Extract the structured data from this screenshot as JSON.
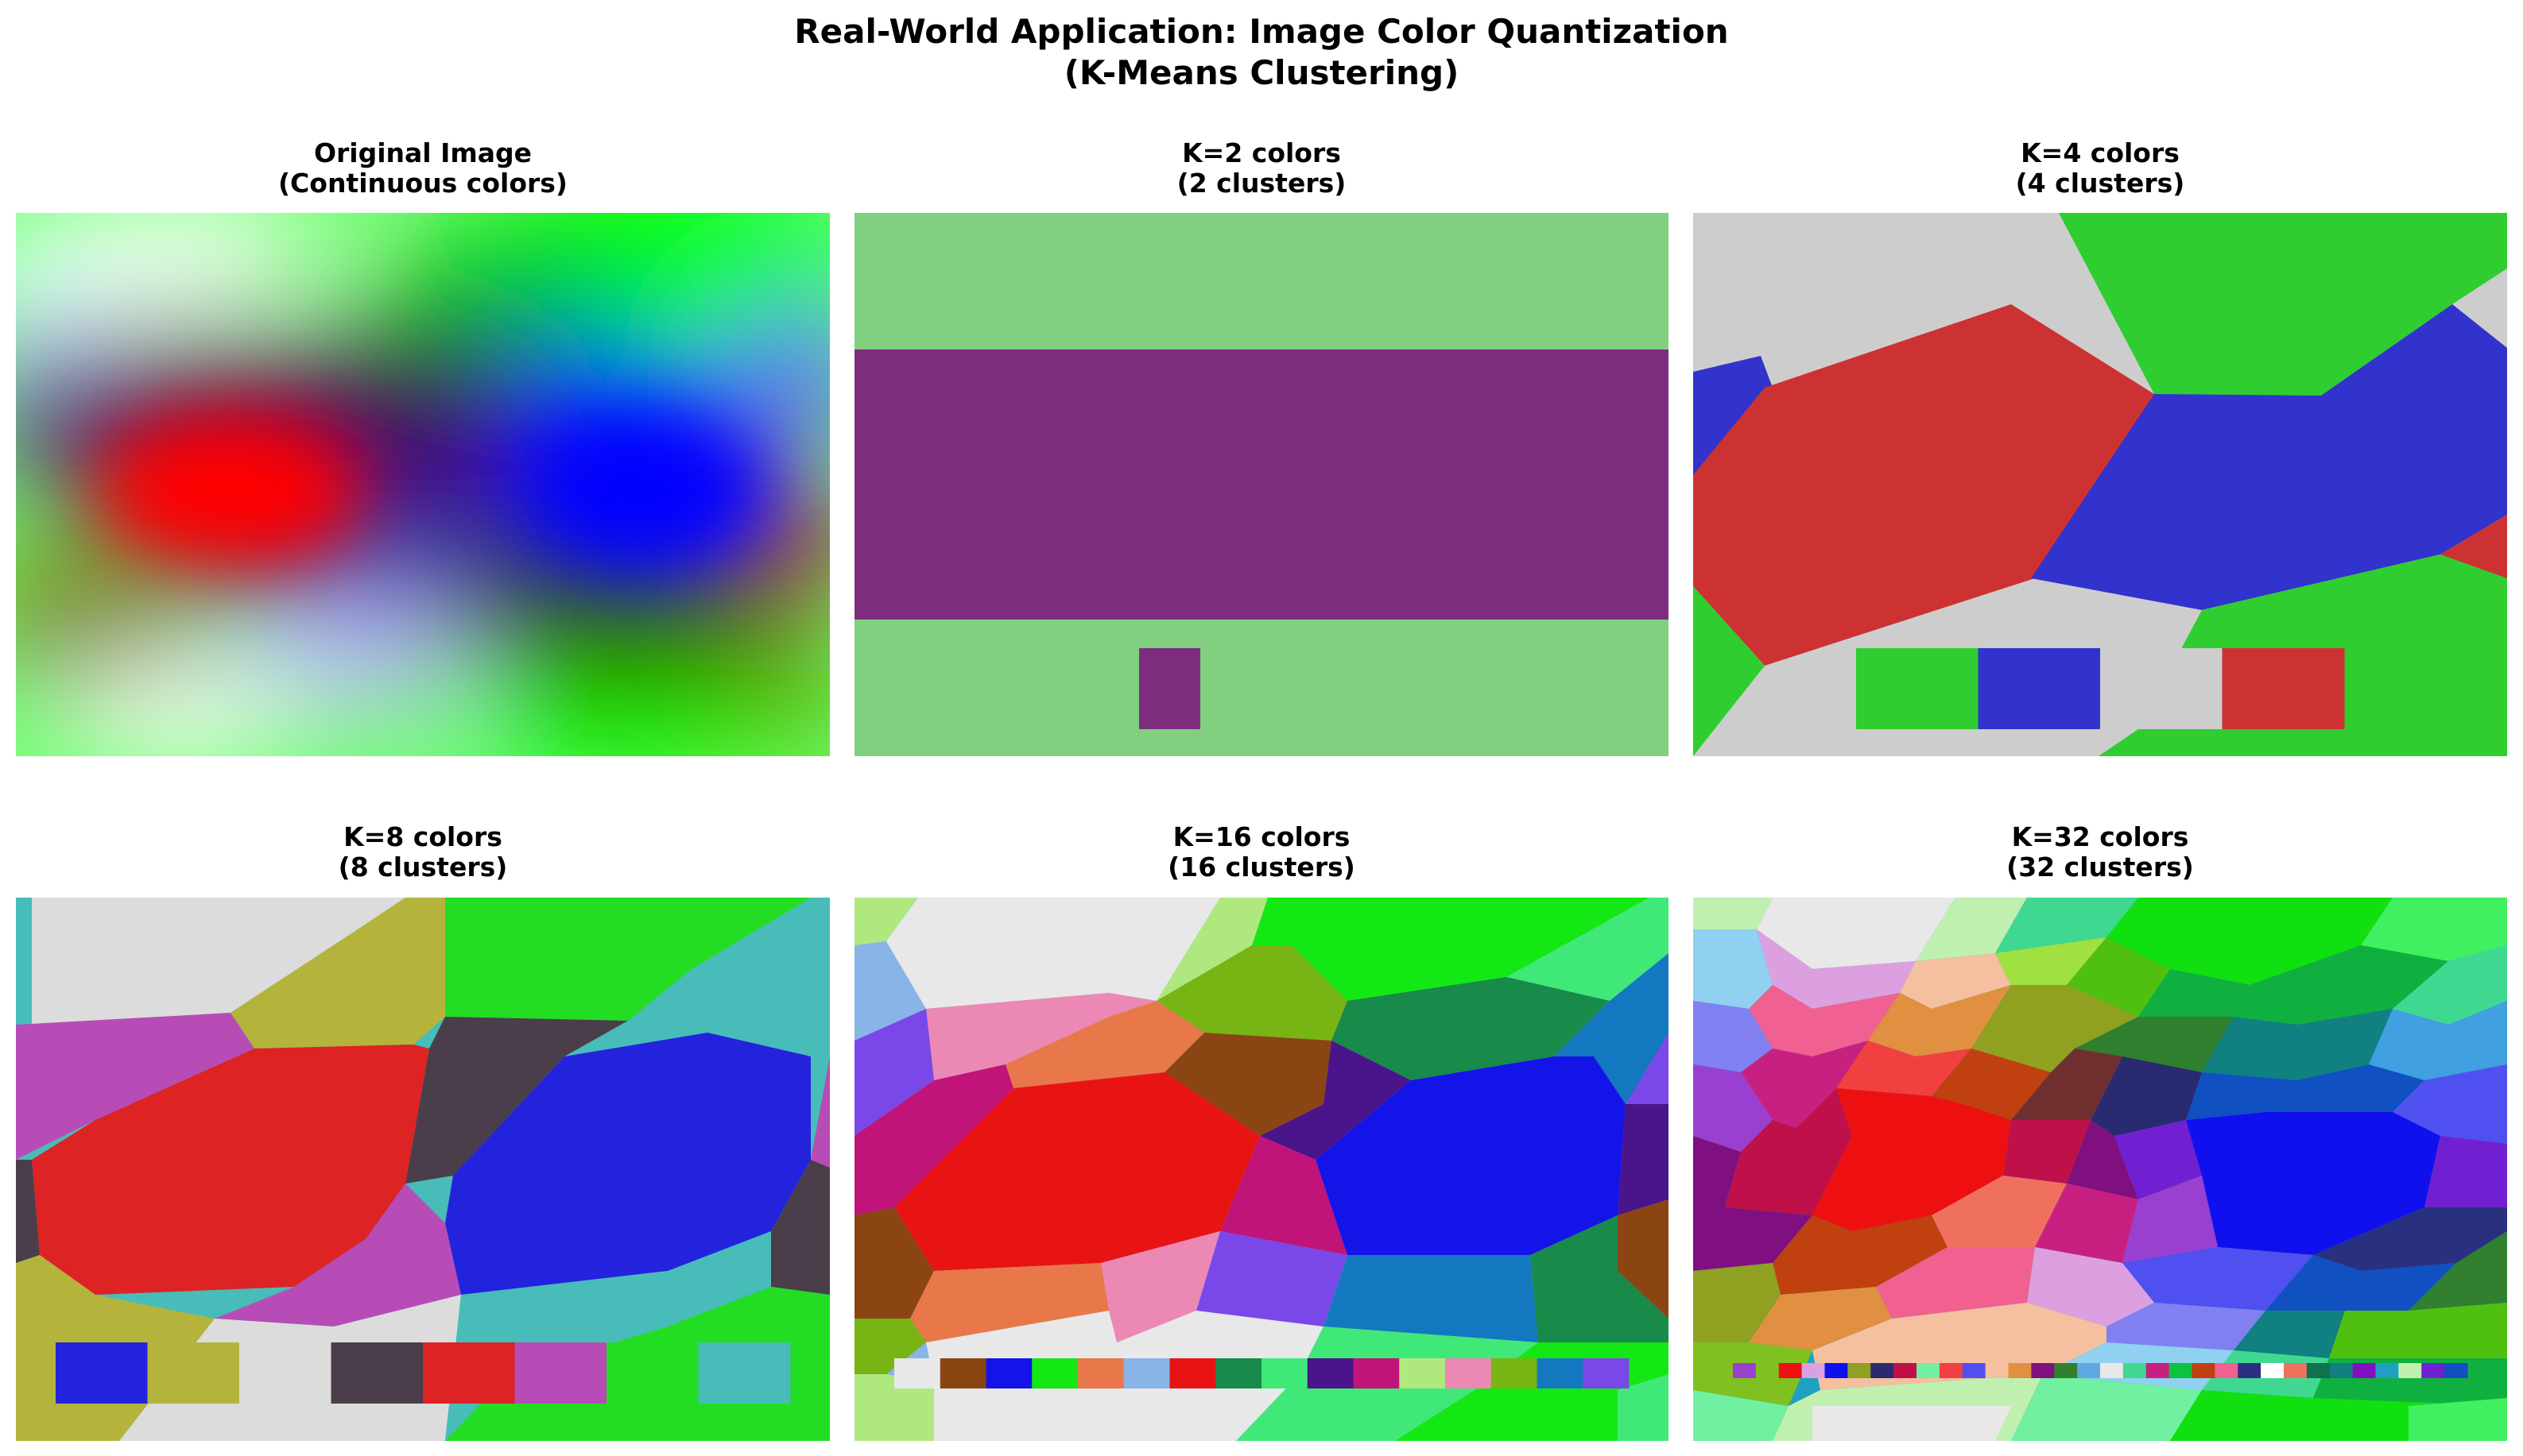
{
  "figure": {
    "title_line1": "Real-World Application: Image Color Quantization",
    "title_line2": "(K-Means Clustering)"
  },
  "chart_data": [
    {
      "type": "heatmap",
      "title_line1": "Original Image",
      "title_line2": "(Continuous colors)",
      "colors": []
    },
    {
      "type": "heatmap",
      "title_line1": "K=2 colors",
      "title_line2": "(2 clusters)",
      "k": 2,
      "colors": [
        "#7e2d7e",
        "#80d080"
      ]
    },
    {
      "type": "heatmap",
      "title_line1": "K=4 colors",
      "title_line2": "(4 clusters)",
      "k": 4,
      "colors": [
        "#2fcd2f",
        "#3232cd",
        "#cdcdcd",
        "#cd3232"
      ]
    },
    {
      "type": "heatmap",
      "title_line1": "K=8 colors",
      "title_line2": "(8 clusters)",
      "k": 8,
      "colors": [
        "#2323dd",
        "#b4b43c",
        "#dcdcdc",
        "#4a3e4a",
        "#dd2323",
        "#b74cb7",
        "#23dd23",
        "#48bcb8"
      ]
    },
    {
      "type": "heatmap",
      "title_line1": "K=16 colors",
      "title_line2": "(16 clusters)",
      "k": 16,
      "colors": [
        "#e8e8e8",
        "#8b4513",
        "#1414e8",
        "#14e814",
        "#e8784a",
        "#88b4e8",
        "#e81414",
        "#188a4a",
        "#40e878",
        "#4a148a",
        "#c0147a",
        "#b0e880",
        "#ec88b4",
        "#78b414",
        "#1478c0",
        "#7a48e8"
      ]
    },
    {
      "type": "heatmap",
      "title_line1": "K=32 colors",
      "title_line2": "(32 clusters)",
      "k": 32,
      "colors": [
        "#9a40d0",
        "#80c020",
        "#ee1010",
        "#dca0e0",
        "#1010ee",
        "#90a020",
        "#2a2a70",
        "#c0104a",
        "#70f0a0",
        "#f04040",
        "#5050f0",
        "#f4c0a0",
        "#e09040",
        "#801080",
        "#308030",
        "#60a8e0",
        "#e8e8e8",
        "#40d890",
        "#c82080",
        "#10c040",
        "#c04010",
        "#f06090",
        "#2a3080",
        "#ffffff",
        "#f07060",
        "#107050",
        "#108080",
        "#8010c0",
        "#20a0c0",
        "#c0f0b0",
        "#7020d0",
        "#1050c0"
      ]
    }
  ]
}
